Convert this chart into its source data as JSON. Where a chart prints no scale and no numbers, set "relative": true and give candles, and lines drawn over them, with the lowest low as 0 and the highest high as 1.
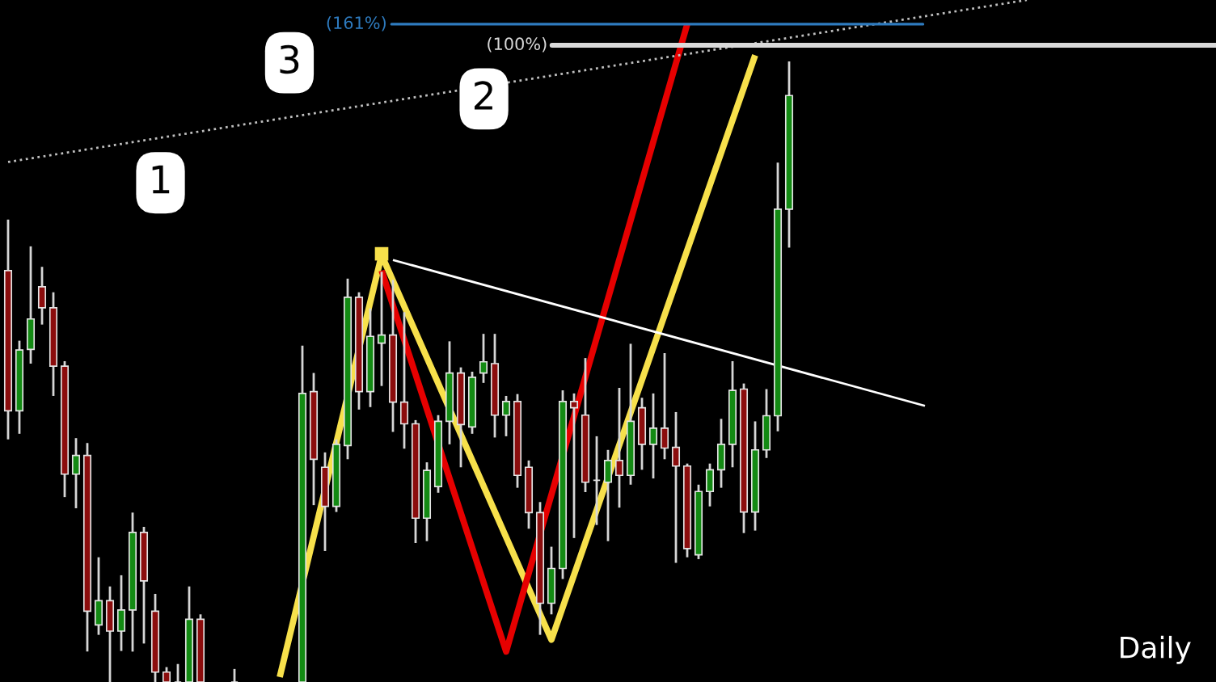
{
  "chart_data": {
    "type": "candlestick",
    "relative": true,
    "tick_labels": false,
    "categories": [
      null,
      null,
      null,
      null,
      null,
      null,
      null,
      null,
      null,
      null,
      null,
      null,
      null,
      null,
      null,
      null,
      null,
      null,
      null,
      null,
      null,
      null,
      null,
      null,
      null,
      null,
      null,
      null,
      null,
      null,
      null,
      null,
      null,
      null,
      null,
      null,
      null,
      null,
      null,
      null,
      null,
      null,
      null,
      null,
      null,
      null,
      null,
      null,
      null,
      null,
      null,
      null,
      null,
      null,
      null,
      null,
      null,
      null,
      null,
      null,
      null,
      null,
      null,
      null,
      null,
      null,
      null,
      null,
      null,
      null,
      null,
      null,
      null,
      null,
      null,
      null,
      null,
      null,
      null,
      null,
      null,
      null,
      null,
      null,
      null,
      null,
      null,
      null,
      null,
      null,
      null,
      null,
      null,
      null,
      null,
      null,
      null,
      null,
      null,
      null,
      null,
      null,
      null,
      null,
      null,
      null,
      null
    ],
    "ohlc": [
      [
        0.663,
        0.745,
        0.391,
        0.437
      ],
      [
        0.437,
        0.55,
        0.4,
        0.535
      ],
      [
        0.536,
        0.702,
        0.513,
        0.585
      ],
      [
        0.637,
        0.669,
        0.576,
        0.603
      ],
      [
        0.603,
        0.628,
        0.461,
        0.509
      ],
      [
        0.509,
        0.517,
        0.298,
        0.335
      ],
      [
        0.335,
        0.393,
        0.28,
        0.365
      ],
      [
        0.365,
        0.385,
        0.049,
        0.114
      ],
      [
        0.092,
        0.201,
        0.076,
        0.131
      ],
      [
        0.131,
        0.154,
        0,
        0.082
      ],
      [
        0.082,
        0.172,
        0.05,
        0.116
      ],
      [
        0.116,
        0.273,
        0.049,
        0.241
      ],
      [
        0.241,
        0.25,
        0.062,
        0.163
      ],
      [
        0.114,
        0.142,
        0,
        0.016
      ],
      [
        0.016,
        0.024,
        0,
        0
      ],
      [
        0,
        0.029,
        0,
        0
      ],
      [
        0,
        0.154,
        0,
        0.101
      ],
      [
        0.101,
        0.109,
        0,
        0
      ],
      null,
      null,
      [
        0,
        0.021,
        0,
        0
      ],
      null,
      null,
      null,
      null,
      null,
      [
        0,
        0.542,
        0,
        0.465
      ],
      [
        0.468,
        0.498,
        0.285,
        0.359
      ],
      [
        0.346,
        0.37,
        0.211,
        0.283
      ],
      [
        0.283,
        0.391,
        0.274,
        0.383
      ],
      [
        0.381,
        0.65,
        0.359,
        0.62
      ],
      [
        0.62,
        0.628,
        0.439,
        0.468
      ],
      [
        0.468,
        0.602,
        0.443,
        0.557
      ],
      [
        0.546,
        0.661,
        0.477,
        0.559
      ],
      [
        0.559,
        0.648,
        0.403,
        0.451
      ],
      [
        0.451,
        0.596,
        0.376,
        0.416
      ],
      [
        0.416,
        0.422,
        0.224,
        0.264
      ],
      [
        0.264,
        0.354,
        0.227,
        0.341
      ],
      [
        0.315,
        0.43,
        0.305,
        0.42
      ],
      [
        0.42,
        0.549,
        0.383,
        0.498
      ],
      [
        0.498,
        0.507,
        0.346,
        0.415
      ],
      [
        0.411,
        0.5,
        0.4,
        0.491
      ],
      [
        0.498,
        0.561,
        0.482,
        0.516
      ],
      [
        0.513,
        0.561,
        0.394,
        0.43
      ],
      [
        0.43,
        0.461,
        0.396,
        0.452
      ],
      [
        0.452,
        0.464,
        0.313,
        0.333
      ],
      [
        0.346,
        0.357,
        0.247,
        0.273
      ],
      [
        0.273,
        0.29,
        0.076,
        0.127
      ],
      [
        0.127,
        0.218,
        0.109,
        0.183
      ],
      [
        0.183,
        0.47,
        0.166,
        0.452
      ],
      [
        0.452,
        0.465,
        0.232,
        0.442
      ],
      [
        0.43,
        0.522,
        0.306,
        0.322
      ],
      [
        0.325,
        0.396,
        0.253,
        0.325
      ],
      [
        0.322,
        0.374,
        0.227,
        0.357
      ],
      [
        0.357,
        0.474,
        0.281,
        0.333
      ],
      [
        0.333,
        0.545,
        0.318,
        0.42
      ],
      [
        0.442,
        0.458,
        0.342,
        0.383
      ],
      [
        0.383,
        0.465,
        0.328,
        0.409
      ],
      [
        0.409,
        0.53,
        0.359,
        0.377
      ],
      [
        0.378,
        0.435,
        0.192,
        0.348
      ],
      [
        0.348,
        0.352,
        0.201,
        0.215
      ],
      [
        0.205,
        0.318,
        0.198,
        0.307
      ],
      [
        0.307,
        0.352,
        0.283,
        0.342
      ],
      [
        0.342,
        0.424,
        0.313,
        0.383
      ],
      [
        0.383,
        0.517,
        0.346,
        0.47
      ],
      [
        0.472,
        0.481,
        0.24,
        0.274
      ],
      [
        0.274,
        0.42,
        0.244,
        0.374
      ],
      [
        0.374,
        0.472,
        0.361,
        0.429
      ],
      [
        0.429,
        0.837,
        0.404,
        0.762
      ],
      [
        0.762,
        1,
        0.7,
        0.945
      ],
      null,
      null,
      null,
      null,
      null,
      null,
      null,
      null,
      null,
      null,
      null,
      null,
      null,
      null,
      null,
      null,
      null,
      null,
      null,
      null,
      null,
      null,
      null,
      null,
      null,
      null,
      null,
      null,
      null,
      null,
      null,
      null,
      null,
      null,
      null,
      null,
      null
    ],
    "colors": [
      "#8b0d0d",
      "#138a13",
      "#138a13",
      "#8b0d0d",
      "#8b0d0d",
      "#8b0d0d",
      "#138a13",
      "#8b0d0d",
      "#138a13",
      "#8b0d0d",
      "#138a13",
      "#138a13",
      "#8b0d0d",
      "#8b0d0d",
      "#8b0d0d",
      null,
      "#138a13",
      "#8b0d0d",
      null,
      null,
      null,
      null,
      null,
      null,
      null,
      null,
      "#138a13",
      "#8b0d0d",
      "#8b0d0d",
      "#138a13",
      "#138a13",
      "#8b0d0d",
      "#138a13",
      "#138a13",
      "#8b0d0d",
      "#8b0d0d",
      "#8b0d0d",
      "#138a13",
      "#138a13",
      "#138a13",
      "#8b0d0d",
      "#138a13",
      "#138a13",
      "#8b0d0d",
      "#138a13",
      "#8b0d0d",
      "#8b0d0d",
      "#8b0d0d",
      "#138a13",
      "#138a13",
      "#8b0d0d",
      "#8b0d0d",
      null,
      "#138a13",
      "#8b0d0d",
      "#138a13",
      "#8b0d0d",
      "#138a13",
      "#8b0d0d",
      "#8b0d0d",
      "#8b0d0d",
      "#138a13",
      "#138a13",
      "#138a13",
      "#138a13",
      "#8b0d0d",
      "#138a13",
      "#138a13",
      "#138a13",
      "#138a13",
      null,
      null,
      null,
      null,
      null,
      null,
      null,
      null,
      null,
      null,
      null,
      null,
      null,
      null,
      null,
      null,
      null,
      null,
      null,
      null,
      null,
      null,
      null,
      null,
      null,
      null,
      null,
      null,
      null,
      null,
      null,
      null,
      null,
      null,
      null,
      null,
      null
    ],
    "series": [
      {
        "type": "line",
        "color": "#f7e04b",
        "line_style": "solid",
        "values": [
          null,
          null,
          null,
          null,
          null,
          null,
          null,
          null,
          null,
          null,
          null,
          null,
          null,
          null,
          null,
          null,
          null,
          null,
          null,
          null,
          null,
          null,
          null,
          null,
          0.008,
          null,
          null,
          null,
          null,
          null,
          null,
          null,
          null,
          0.688,
          null,
          null,
          null,
          null,
          null,
          null,
          null,
          null,
          null,
          null,
          null,
          null,
          null,
          null,
          0.068,
          null,
          null,
          null,
          null,
          null,
          null,
          null,
          null,
          null,
          null,
          null,
          null,
          null,
          null,
          null,
          null,
          null,
          1.01,
          null,
          null,
          null,
          null,
          null,
          null,
          null,
          null,
          null,
          null,
          null,
          null,
          null,
          null,
          null,
          null,
          null,
          null,
          null,
          null,
          null,
          null,
          null,
          null,
          null,
          null,
          null,
          null,
          null,
          null,
          null,
          null,
          null,
          null,
          null,
          null,
          null,
          null,
          null,
          null
        ]
      },
      {
        "type": "line",
        "color": "#e60000",
        "line_style": "solid",
        "values": [
          null,
          null,
          null,
          null,
          null,
          null,
          null,
          null,
          null,
          null,
          null,
          null,
          null,
          null,
          null,
          null,
          null,
          null,
          null,
          null,
          null,
          null,
          null,
          null,
          null,
          null,
          null,
          null,
          null,
          null,
          null,
          null,
          null,
          0.663,
          null,
          null,
          null,
          null,
          null,
          null,
          null,
          null,
          null,
          null,
          0.049,
          null,
          null,
          null,
          null,
          null,
          null,
          null,
          null,
          null,
          null,
          null,
          null,
          null,
          null,
          null,
          1.06,
          null,
          null,
          null,
          null,
          null,
          null,
          null,
          null,
          null,
          null,
          null,
          null,
          null,
          null,
          null,
          null,
          null,
          null,
          null,
          null,
          null,
          null,
          null,
          null,
          null,
          null,
          null,
          null,
          null,
          null,
          null,
          null,
          null,
          null,
          null,
          null,
          null,
          null,
          null,
          null,
          null,
          null,
          null,
          null,
          null,
          null
        ]
      },
      {
        "type": "line",
        "color": "#ffffff",
        "line_style": "solid",
        "values": [
          null,
          null,
          null,
          null,
          null,
          null,
          null,
          null,
          null,
          null,
          null,
          null,
          null,
          null,
          null,
          null,
          null,
          null,
          null,
          null,
          null,
          null,
          null,
          null,
          null,
          null,
          null,
          null,
          null,
          null,
          null,
          null,
          null,
          null,
          0.68,
          null,
          null,
          null,
          null,
          null,
          null,
          null,
          null,
          null,
          null,
          null,
          null,
          null,
          null,
          null,
          null,
          null,
          null,
          null,
          null,
          null,
          null,
          null,
          null,
          null,
          null,
          null,
          null,
          null,
          null,
          null,
          null,
          null,
          null,
          null,
          null,
          null,
          null,
          null,
          null,
          null,
          null,
          null,
          null,
          null,
          null,
          0.445,
          null,
          null,
          null,
          null,
          null,
          null,
          null,
          null,
          null,
          null,
          null,
          null,
          null,
          null,
          null,
          null,
          null,
          null,
          null,
          null,
          null,
          null,
          null,
          null,
          null
        ]
      },
      {
        "type": "line",
        "color": "#bfbfbf",
        "line_style": "dotted",
        "values": [
          0.838,
          null,
          null,
          null,
          null,
          null,
          null,
          null,
          null,
          null,
          null,
          null,
          null,
          null,
          null,
          null,
          null,
          null,
          null,
          null,
          null,
          null,
          null,
          null,
          null,
          null,
          null,
          null,
          null,
          null,
          null,
          null,
          null,
          null,
          null,
          null,
          null,
          null,
          null,
          null,
          null,
          null,
          null,
          null,
          null,
          null,
          null,
          null,
          null,
          null,
          null,
          null,
          null,
          null,
          null,
          null,
          null,
          null,
          null,
          null,
          null,
          null,
          null,
          null,
          null,
          null,
          null,
          null,
          null,
          null,
          null,
          null,
          null,
          null,
          null,
          null,
          null,
          null,
          null,
          null,
          null,
          null,
          null,
          null,
          null,
          null,
          null,
          null,
          null,
          null,
          1.099,
          null,
          null,
          null,
          null,
          null,
          null,
          null,
          null,
          null,
          null,
          null,
          null,
          null,
          null,
          null,
          null
        ]
      },
      {
        "type": "scatter",
        "color": "#f7e04b",
        "marker": "square",
        "values": [
          null,
          null,
          null,
          null,
          null,
          null,
          null,
          null,
          null,
          null,
          null,
          null,
          null,
          null,
          null,
          null,
          null,
          null,
          null,
          null,
          null,
          null,
          null,
          null,
          null,
          null,
          null,
          null,
          null,
          null,
          null,
          null,
          null,
          0.69,
          null,
          null,
          null,
          null,
          null,
          null,
          null,
          null,
          null,
          null,
          null,
          null,
          null,
          null,
          null,
          null,
          null,
          null,
          null,
          null,
          null,
          null,
          null,
          null,
          null,
          null,
          null,
          null,
          null,
          null,
          null,
          null,
          null,
          null,
          null,
          null,
          null,
          null,
          null,
          null,
          null,
          null,
          null,
          null,
          null,
          null,
          null,
          null,
          null,
          null,
          null,
          null,
          null,
          null,
          null,
          null,
          null,
          null,
          null,
          null,
          null,
          null,
          null,
          null,
          null,
          null,
          null,
          null,
          null,
          null,
          null,
          null,
          null
        ]
      }
    ],
    "ref_lines": [
      {
        "axis": "y",
        "value": 1.06,
        "color": "#2e7bbf"
      },
      {
        "axis": "y",
        "value": 1.026,
        "color": "#d9d9d9"
      }
    ],
    "annotations": [
      "(161%)",
      "(100%)",
      "3",
      "2",
      "1",
      "Daily"
    ]
  }
}
